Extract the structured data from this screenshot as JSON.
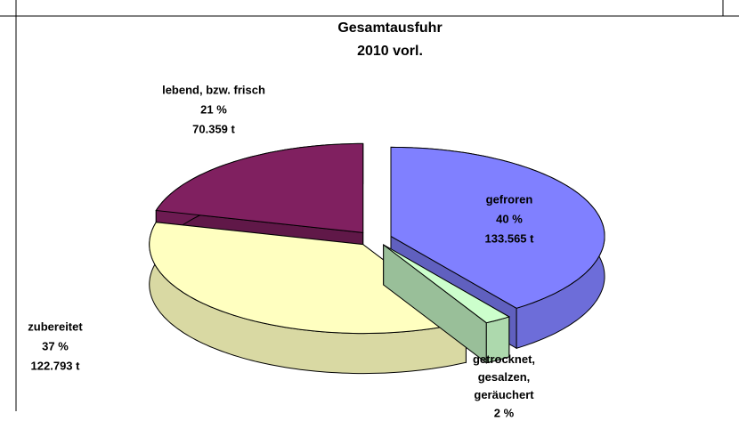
{
  "chart_data": {
    "type": "pie3d",
    "title": "Gesamtausfuhr",
    "subtitle": "2010 vorl.",
    "categories": [
      "gefroren",
      "getrocknet, gesalzen, geräuchert",
      "zubereitet",
      "lebend, bzw. frisch"
    ],
    "values": [
      40,
      2,
      37,
      21
    ],
    "value_labels": [
      "40 %",
      "2 %",
      "37 %",
      "21 %"
    ],
    "amount_labels": [
      "133.565 t",
      null,
      "122.793 t",
      "70.359 t"
    ],
    "colors": [
      "#8080ff",
      "#ccffcc",
      "#ffffc0",
      "#802060"
    ]
  }
}
